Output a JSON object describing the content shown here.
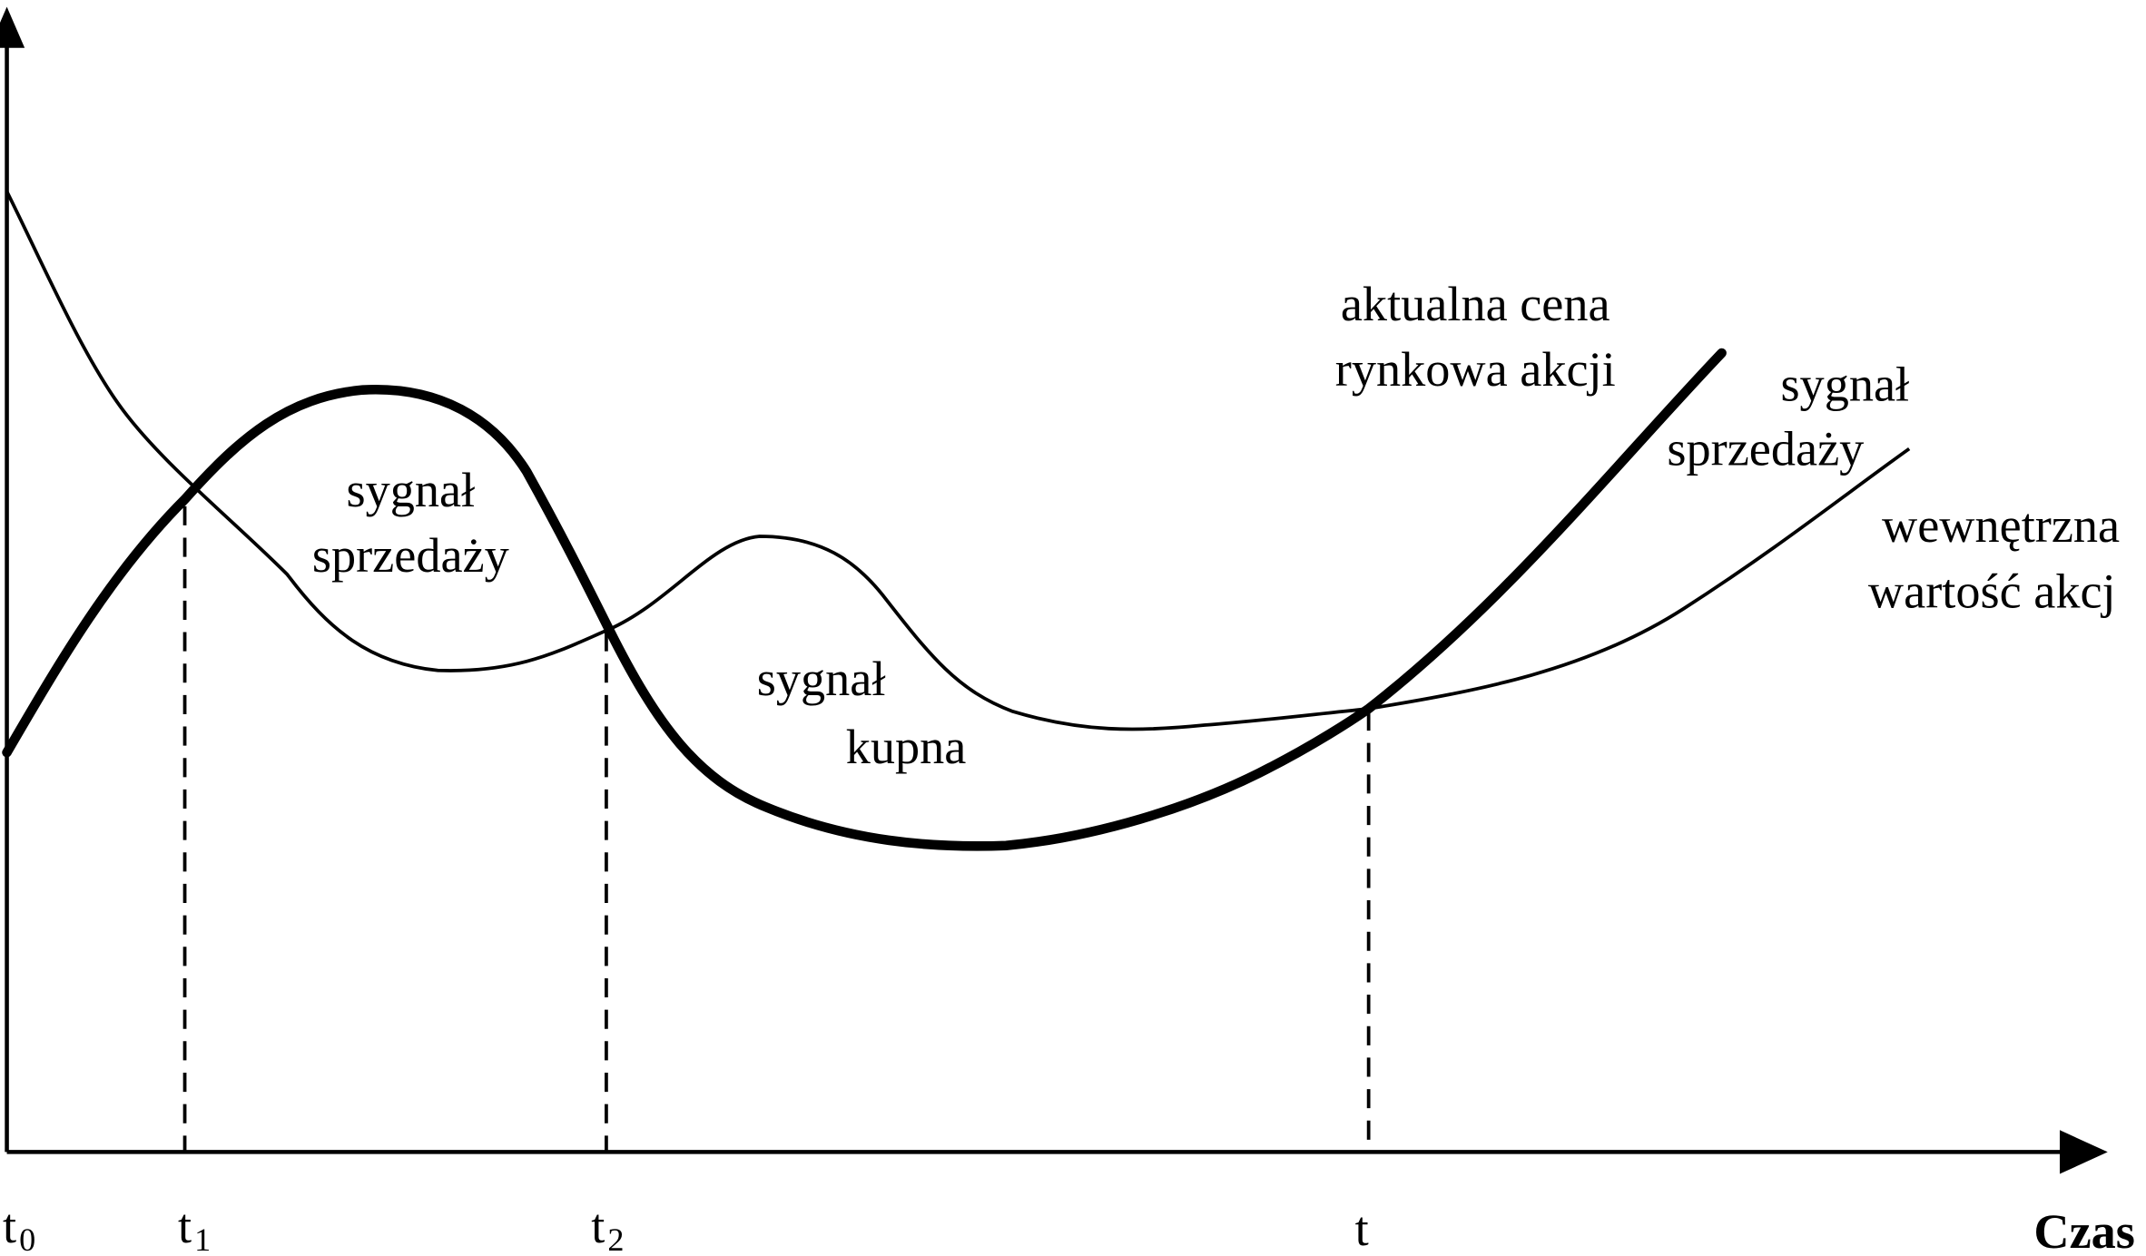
{
  "axis": {
    "x_label": "Czas",
    "ticks": [
      {
        "text": "t",
        "sub": "0"
      },
      {
        "text": "t",
        "sub": "1"
      },
      {
        "text": "t",
        "sub": "2"
      },
      {
        "text": "t"
      }
    ]
  },
  "curves": [
    {
      "label": [
        "aktualna cena",
        "rynkowa akcji"
      ]
    },
    {
      "label": [
        "wewnętrzna",
        "wartość akcj"
      ]
    }
  ],
  "signals": [
    {
      "lines": [
        "sygnał",
        "sprzedaży"
      ]
    },
    {
      "lines": [
        "sygnał",
        "kupna"
      ]
    },
    {
      "lines": [
        "sygnał",
        "sprzedaży"
      ]
    }
  ]
}
